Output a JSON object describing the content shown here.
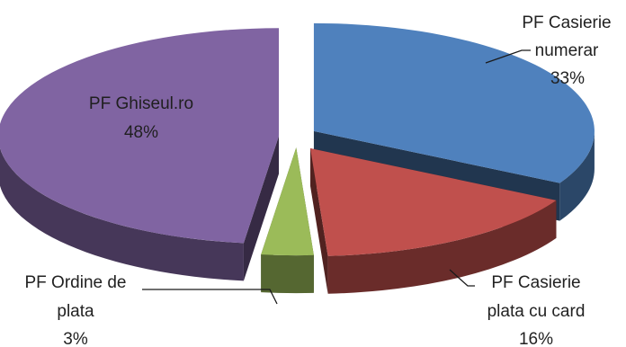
{
  "chart_data": {
    "type": "pie",
    "title": "",
    "style": "3d-exploded",
    "slices": [
      {
        "name": "PF Casierie numerar",
        "label_lines": [
          "PF Casierie",
          "numerar"
        ],
        "value": 33,
        "value_label": "33%",
        "color": "#4F81BD"
      },
      {
        "name": "PF Casierie plata cu card",
        "label_lines": [
          "PF Casierie",
          "plata cu card"
        ],
        "value": 16,
        "value_label": "16%",
        "color": "#C0504D"
      },
      {
        "name": "PF Ordine de plata",
        "label_lines": [
          "PF Ordine de",
          "plata"
        ],
        "value": 3,
        "value_label": "3%",
        "color": "#9BBB59"
      },
      {
        "name": "PF Ghiseul.ro",
        "label_lines": [
          "PF Ghiseul.ro"
        ],
        "value": 48,
        "value_label": "48%",
        "color": "#8064A2"
      }
    ]
  }
}
